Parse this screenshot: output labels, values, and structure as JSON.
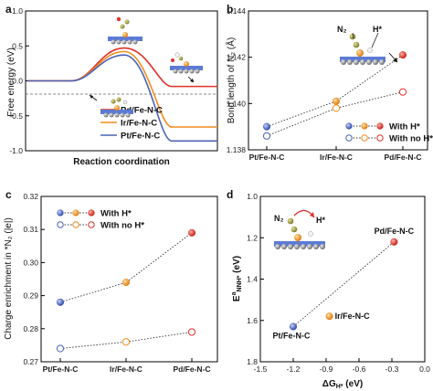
{
  "chart_data": [
    {
      "panel": "a",
      "type": "line",
      "xlabel": "Reaction coordination",
      "ylabel": "Free energy (eV)",
      "ylim": [
        -1.0,
        1.0
      ],
      "yticks": [
        "1.0",
        "0.5",
        "0.0",
        "-0.5",
        "-1.0"
      ],
      "legend_position": "bottom-right",
      "series": [
        {
          "name": "Pd/Fe-N-C",
          "color": "#e0322b",
          "initial": 0.0,
          "peak": 0.47,
          "final": -0.08
        },
        {
          "name": "Ir/Fe-N-C",
          "color": "#f08c1e",
          "initial": 0.0,
          "peak": 0.42,
          "final": -0.66
        },
        {
          "name": "Pt/Fe-N-C",
          "color": "#4a63b5",
          "initial": 0.0,
          "peak": 0.37,
          "final": -0.86
        }
      ]
    },
    {
      "panel": "b",
      "type": "scatter",
      "xlabel": "",
      "ylabel": "Bond length of N₂ (Å)",
      "categories": [
        "Pt/Fe-N-C",
        "Ir/Fe-N-C",
        "Pd/Fe-N-C"
      ],
      "ylim": [
        1.138,
        1.144
      ],
      "yticks": [
        "1.144",
        "1.142",
        "1.140",
        "1.138"
      ],
      "legend_position": "bottom-right",
      "series": [
        {
          "name": "With H*",
          "filled": true,
          "values": [
            1.139,
            1.1401,
            1.1421
          ]
        },
        {
          "name": "With no H*",
          "filled": false,
          "values": [
            1.1386,
            1.1398,
            1.1405
          ]
        }
      ],
      "annotations": [
        "N₂",
        "H*"
      ]
    },
    {
      "panel": "c",
      "type": "scatter",
      "xlabel": "",
      "ylabel": "Charge enrichment in *N₂ (|e|)",
      "categories": [
        "Pt/Fe-N-C",
        "Ir/Fe-N-C",
        "Pd/Fe-N-C"
      ],
      "ylim": [
        0.27,
        0.32
      ],
      "yticks": [
        "0.32",
        "0.31",
        "0.30",
        "0.29",
        "0.28",
        "0.27"
      ],
      "legend_position": "top-left",
      "series": [
        {
          "name": "With H*",
          "filled": true,
          "values": [
            0.288,
            0.294,
            0.309
          ]
        },
        {
          "name": "With no H*",
          "filled": false,
          "values": [
            0.274,
            0.276,
            0.279
          ]
        }
      ]
    },
    {
      "panel": "d",
      "type": "scatter",
      "xlabel": "ΔG",
      "xlabel_sub": "H*",
      "xlabel_unit": " (eV)",
      "ylabel": "E",
      "ylabel_sup": "a",
      "ylabel_sub": "NNH*",
      "ylabel_unit": " (eV)",
      "xlim": [
        -1.5,
        0.0
      ],
      "ylim": [
        1.0,
        1.8
      ],
      "xticks": [
        "-1.5",
        "-1.2",
        "-0.9",
        "-0.6",
        "-0.3",
        "0.0"
      ],
      "yticks": [
        "1.0",
        "1.2",
        "1.4",
        "1.6",
        "1.8"
      ],
      "points": [
        {
          "name": "Pt/Fe-N-C",
          "x": -1.2,
          "y": 1.63,
          "color": "#4a63b5"
        },
        {
          "name": "Ir/Fe-N-C",
          "x": -0.87,
          "y": 1.58,
          "color": "#f08c1e"
        },
        {
          "name": "Pd/Fe-N-C",
          "x": -0.28,
          "y": 1.22,
          "color": "#e0322b"
        }
      ],
      "annotations": [
        "N₂",
        "H*"
      ]
    }
  ],
  "panels": {
    "a": "a",
    "b": "b",
    "c": "c",
    "d": "d"
  },
  "colors": {
    "pd": "#e0322b",
    "ir": "#f08c1e",
    "pt": "#4a63b5"
  }
}
